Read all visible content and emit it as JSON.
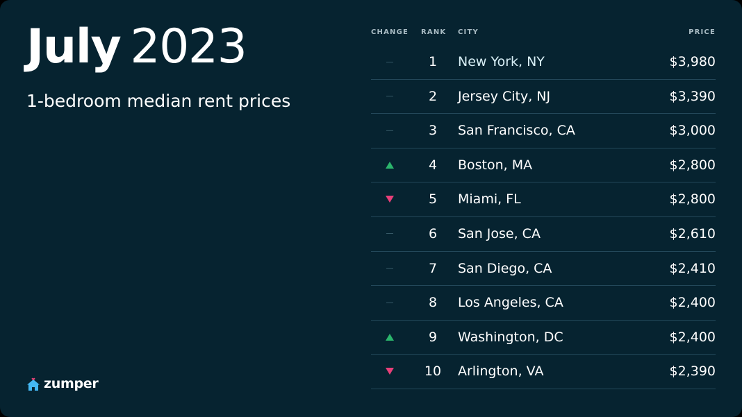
{
  "header": {
    "title_month": "July",
    "title_year": "2023",
    "subtitle": "1-bedroom median rent prices"
  },
  "brand": {
    "name": "zumper",
    "icon": "house-heart-icon",
    "icon_color": "#44b8f3",
    "heart_color": "#e8457a"
  },
  "colors": {
    "background": "#062330",
    "up": "#2bb56c",
    "down": "#e83f79"
  },
  "table": {
    "columns": {
      "change": "CHANGE",
      "rank": "RANK",
      "city": "CITY",
      "price": "PRICE"
    },
    "rows": [
      {
        "change": "none",
        "rank": "1",
        "city": "New York, NY",
        "price": "$3,980"
      },
      {
        "change": "none",
        "rank": "2",
        "city": "Jersey City, NJ",
        "price": "$3,390"
      },
      {
        "change": "none",
        "rank": "3",
        "city": "San Francisco, CA",
        "price": "$3,000"
      },
      {
        "change": "up",
        "rank": "4",
        "city": "Boston, MA",
        "price": "$2,800"
      },
      {
        "change": "down",
        "rank": "5",
        "city": "Miami, FL",
        "price": "$2,800"
      },
      {
        "change": "none",
        "rank": "6",
        "city": "San Jose, CA",
        "price": "$2,610"
      },
      {
        "change": "none",
        "rank": "7",
        "city": "San Diego, CA",
        "price": "$2,410"
      },
      {
        "change": "none",
        "rank": "8",
        "city": "Los Angeles, CA",
        "price": "$2,400"
      },
      {
        "change": "up",
        "rank": "9",
        "city": "Washington, DC",
        "price": "$2,400"
      },
      {
        "change": "down",
        "rank": "10",
        "city": "Arlington, VA",
        "price": "$2,390"
      }
    ]
  }
}
